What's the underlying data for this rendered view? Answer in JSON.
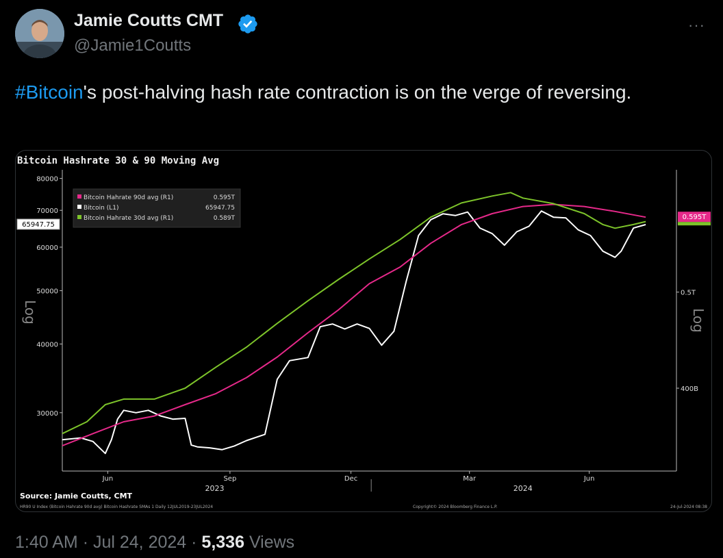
{
  "tweet": {
    "author_name": "Jamie Coutts CMT",
    "handle": "@Jamie1Coutts",
    "hashtag": "#Bitcoin",
    "text_rest": "'s post-halving hash rate contraction is on the verge of reversing.",
    "time": "1:40 AM",
    "date": "Jul 24, 2024",
    "separator": "·",
    "views_count": "5,336",
    "views_label": "Views",
    "more_label": "···"
  },
  "colors": {
    "accent": "#1d9bf0",
    "ma90": "#e6298a",
    "price": "#ffffff",
    "ma30": "#7dc42a"
  },
  "chart_data": {
    "type": "line",
    "title": "Bitcoin Hashrate 30 & 90 Moving Avg",
    "left_axis_label": "Log",
    "right_axis_label": "Log",
    "yticks_left": [
      "80000",
      "70000",
      "60000",
      "50000",
      "40000",
      "30000"
    ],
    "yticks_right": [
      "0.5T",
      "400B"
    ],
    "xticks": [
      "Jun",
      "Sep",
      "Dec",
      "Mar",
      "Jun"
    ],
    "year_labels": [
      "2023",
      "2024"
    ],
    "last_price_label": "65947.75",
    "right_last_label": "0.595T",
    "legend": [
      {
        "name": "Bitcoin Hahrate 90d avg (R1)",
        "value": "0.595T",
        "color": "#e6298a"
      },
      {
        "name": "Bitcoin (L1)",
        "value": "65947.75",
        "color": "#ffffff"
      },
      {
        "name": "Bitcoin Hahrate 30d avg (R1)",
        "value": "0.589T",
        "color": "#7dc42a"
      }
    ],
    "source": "Source: Jamie Coutts, CMT",
    "footnote": "HR90 U Index (Bitcoin Hahrate 90d avg) Bitcoin Hashrate SMAs 1 Daily 12JUL2019-23JUL2024",
    "copyright": "Copyright© 2024 Bloomberg Finance L.P.",
    "timestamp": "24-Jul-2024 08:38",
    "series": [
      {
        "name": "Bitcoin (L1)",
        "points": [
          [
            0,
            26800
          ],
          [
            0.03,
            27000
          ],
          [
            0.05,
            26600
          ],
          [
            0.07,
            25300
          ],
          [
            0.08,
            26800
          ],
          [
            0.09,
            29200
          ],
          [
            0.1,
            30300
          ],
          [
            0.12,
            30000
          ],
          [
            0.14,
            30300
          ],
          [
            0.16,
            29600
          ],
          [
            0.18,
            29200
          ],
          [
            0.2,
            29300
          ],
          [
            0.21,
            26200
          ],
          [
            0.22,
            26000
          ],
          [
            0.24,
            25900
          ],
          [
            0.26,
            25700
          ],
          [
            0.28,
            26100
          ],
          [
            0.3,
            26700
          ],
          [
            0.33,
            27400
          ],
          [
            0.35,
            34500
          ],
          [
            0.37,
            37300
          ],
          [
            0.4,
            37800
          ],
          [
            0.42,
            43000
          ],
          [
            0.44,
            43500
          ],
          [
            0.46,
            42600
          ],
          [
            0.48,
            43500
          ],
          [
            0.5,
            42700
          ],
          [
            0.52,
            39800
          ],
          [
            0.54,
            42200
          ],
          [
            0.56,
            52000
          ],
          [
            0.58,
            63000
          ],
          [
            0.6,
            67300
          ],
          [
            0.62,
            69000
          ],
          [
            0.64,
            68500
          ],
          [
            0.66,
            69500
          ],
          [
            0.68,
            65000
          ],
          [
            0.7,
            63500
          ],
          [
            0.72,
            60500
          ],
          [
            0.74,
            64000
          ],
          [
            0.76,
            65500
          ],
          [
            0.78,
            69800
          ],
          [
            0.8,
            68000
          ],
          [
            0.82,
            67800
          ],
          [
            0.84,
            64500
          ],
          [
            0.86,
            63000
          ],
          [
            0.88,
            59000
          ],
          [
            0.9,
            57500
          ],
          [
            0.91,
            59000
          ],
          [
            0.93,
            65000
          ],
          [
            0.95,
            65947
          ]
        ]
      },
      {
        "name": "Bitcoin Hahrate 90d avg (R1)",
        "points": [
          [
            0,
            0.35
          ],
          [
            0.05,
            0.36
          ],
          [
            0.1,
            0.37
          ],
          [
            0.15,
            0.375
          ],
          [
            0.2,
            0.385
          ],
          [
            0.25,
            0.395
          ],
          [
            0.3,
            0.41
          ],
          [
            0.35,
            0.43
          ],
          [
            0.4,
            0.455
          ],
          [
            0.45,
            0.48
          ],
          [
            0.5,
            0.51
          ],
          [
            0.55,
            0.53
          ],
          [
            0.6,
            0.56
          ],
          [
            0.65,
            0.585
          ],
          [
            0.7,
            0.6
          ],
          [
            0.75,
            0.61
          ],
          [
            0.8,
            0.613
          ],
          [
            0.85,
            0.61
          ],
          [
            0.9,
            0.603
          ],
          [
            0.95,
            0.595
          ]
        ]
      },
      {
        "name": "Bitcoin Hahrate 30d avg (R1)",
        "points": [
          [
            0,
            0.36
          ],
          [
            0.04,
            0.37
          ],
          [
            0.07,
            0.385
          ],
          [
            0.1,
            0.39
          ],
          [
            0.15,
            0.39
          ],
          [
            0.2,
            0.4
          ],
          [
            0.25,
            0.42
          ],
          [
            0.3,
            0.44
          ],
          [
            0.35,
            0.465
          ],
          [
            0.4,
            0.49
          ],
          [
            0.45,
            0.515
          ],
          [
            0.5,
            0.54
          ],
          [
            0.55,
            0.565
          ],
          [
            0.6,
            0.595
          ],
          [
            0.65,
            0.615
          ],
          [
            0.7,
            0.625
          ],
          [
            0.73,
            0.63
          ],
          [
            0.75,
            0.622
          ],
          [
            0.8,
            0.614
          ],
          [
            0.85,
            0.6
          ],
          [
            0.88,
            0.585
          ],
          [
            0.9,
            0.58
          ],
          [
            0.93,
            0.585
          ],
          [
            0.95,
            0.589
          ]
        ]
      }
    ]
  }
}
